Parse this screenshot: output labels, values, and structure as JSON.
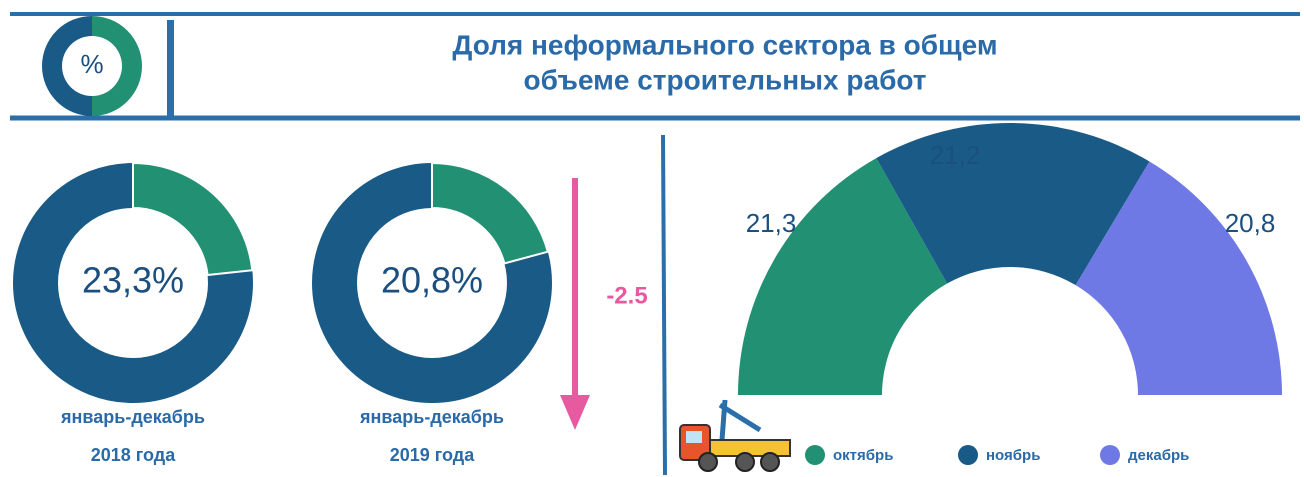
{
  "title_lines": [
    "Доля неформального сектора в общем",
    "объеме строительных работ"
  ],
  "icon_label": "%",
  "change": -2.5,
  "chart_data": [
    {
      "type": "donut",
      "value": 23.3,
      "value_label": "23,3%",
      "color": "#229072",
      "track_color": "#1a5a86",
      "caption": [
        "январь-декабрь",
        "2018 года"
      ]
    },
    {
      "type": "donut",
      "value": 20.8,
      "value_label": "20,8%",
      "color": "#229072",
      "track_color": "#1a5a86",
      "caption": [
        "январь-декабрь",
        "2019 года"
      ]
    },
    {
      "type": "half-donut",
      "series": [
        {
          "name": "октябрь",
          "color": "#229072",
          "value": 21.3,
          "value_label": "21,3"
        },
        {
          "name": "ноябрь",
          "color": "#1a5a86",
          "value": 21.2,
          "value_label": "21,2"
        },
        {
          "name": "декабрь",
          "color": "#6f79e6",
          "value": 20.8,
          "value_label": "20,8"
        }
      ]
    }
  ]
}
